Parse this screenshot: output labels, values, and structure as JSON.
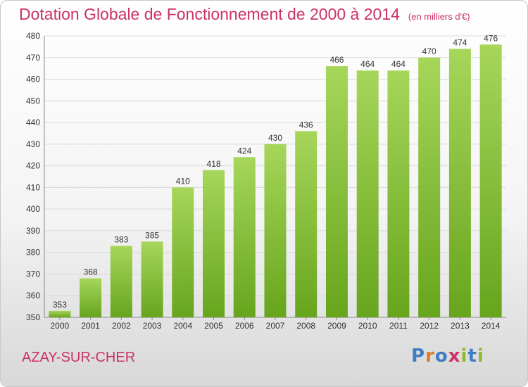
{
  "title": "Dotation Globale de Fonctionnement de 2000 à 2014",
  "unit_note": "(en milliers d'€)",
  "commune": "AZAY-SUR-CHER",
  "logo": {
    "text": "Proxiti",
    "letter_colors": [
      "#3d7ec2",
      "#e07a2a",
      "#3d7ec2",
      "#cc3366",
      "#8bbd2c",
      "#3d7ec2",
      "#8bbd2c"
    ]
  },
  "colors": {
    "bar_light": "#a6d65a",
    "bar_dark": "#67a51d",
    "title": "#cc3366",
    "grid": "#d9d9d9"
  },
  "chart_data": {
    "type": "bar",
    "categories": [
      "2000",
      "2001",
      "2002",
      "2003",
      "2004",
      "2005",
      "2006",
      "2007",
      "2008",
      "2009",
      "2010",
      "2011",
      "2012",
      "2013",
      "2014"
    ],
    "values": [
      353,
      368,
      383,
      385,
      410,
      418,
      424,
      430,
      436,
      466,
      464,
      464,
      470,
      474,
      476
    ],
    "title": "Dotation Globale de Fonctionnement de 2000 à 2014",
    "ylim": [
      350,
      480
    ],
    "yticks": [
      350,
      360,
      370,
      380,
      390,
      400,
      410,
      420,
      430,
      440,
      450,
      460,
      470,
      480
    ],
    "grid": true,
    "data_labels": true
  }
}
